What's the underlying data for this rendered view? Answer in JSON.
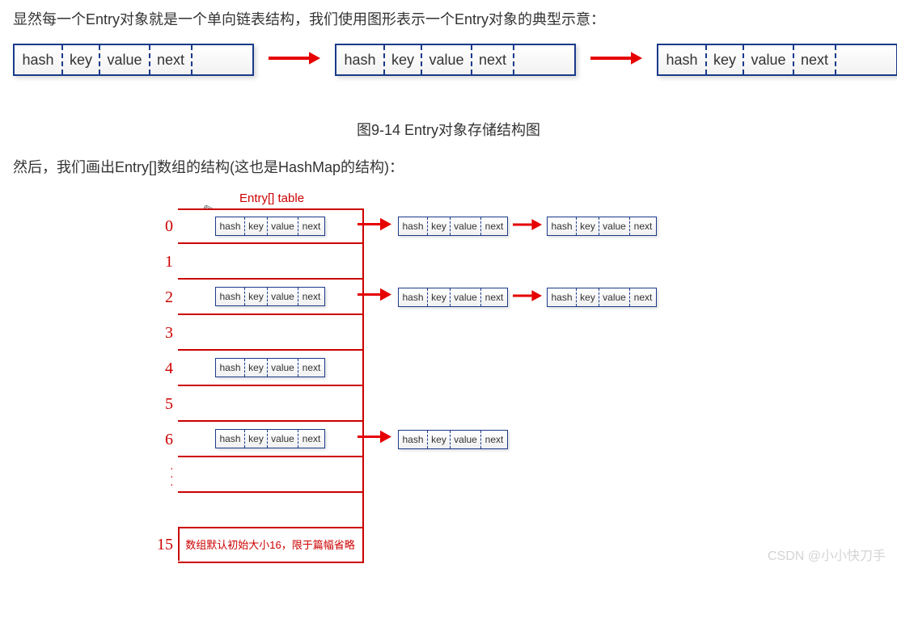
{
  "text": {
    "intro": "显然每一个Entry对象就是一个单向链表结构，我们使用图形表示一个Entry对象的典型示意：",
    "figCaption": "图9-14 Entry对象存储结构图",
    "sub": "然后，我们画出Entry[]数组的结构(这也是HashMap的结构)：",
    "tableTitle": "Entry[]  table",
    "footnote": "数组默认初始大小16，限于篇幅省略",
    "watermark": "CSDN @小小快刀手",
    "dots": "...",
    "pencil": "✎"
  },
  "entryBox": {
    "fields": [
      "hash",
      "key",
      "value",
      "next"
    ],
    "fontSizeLarge": 18,
    "fontSizeSmall": 12,
    "borderColor": "#1a3a8a",
    "cellDividerStyle": "dashed"
  },
  "colors": {
    "arrow": "#e60000",
    "tableBorder": "#cc0000",
    "indexLabel": "#cc0000",
    "textPrimary": "#333333",
    "background": "#ffffff",
    "watermark": "#d4d4d4"
  },
  "bigChain": {
    "count": 3,
    "extraRightPad": true
  },
  "hashTable": {
    "bucketWidth": 230,
    "bucketHeight": 44,
    "rows": [
      {
        "index": "0",
        "chainLen": 3
      },
      {
        "index": "1",
        "chainLen": 0
      },
      {
        "index": "2",
        "chainLen": 3
      },
      {
        "index": "3",
        "chainLen": 0
      },
      {
        "index": "4",
        "chainLen": 1
      },
      {
        "index": "5",
        "chainLen": 0
      },
      {
        "index": "6",
        "chainLen": 2
      },
      {
        "index": "",
        "chainLen": 0,
        "dotsAbove": true
      },
      {
        "index": "",
        "chainLen": 0
      },
      {
        "index": "15",
        "chainLen": 0,
        "footnote": true
      }
    ]
  }
}
